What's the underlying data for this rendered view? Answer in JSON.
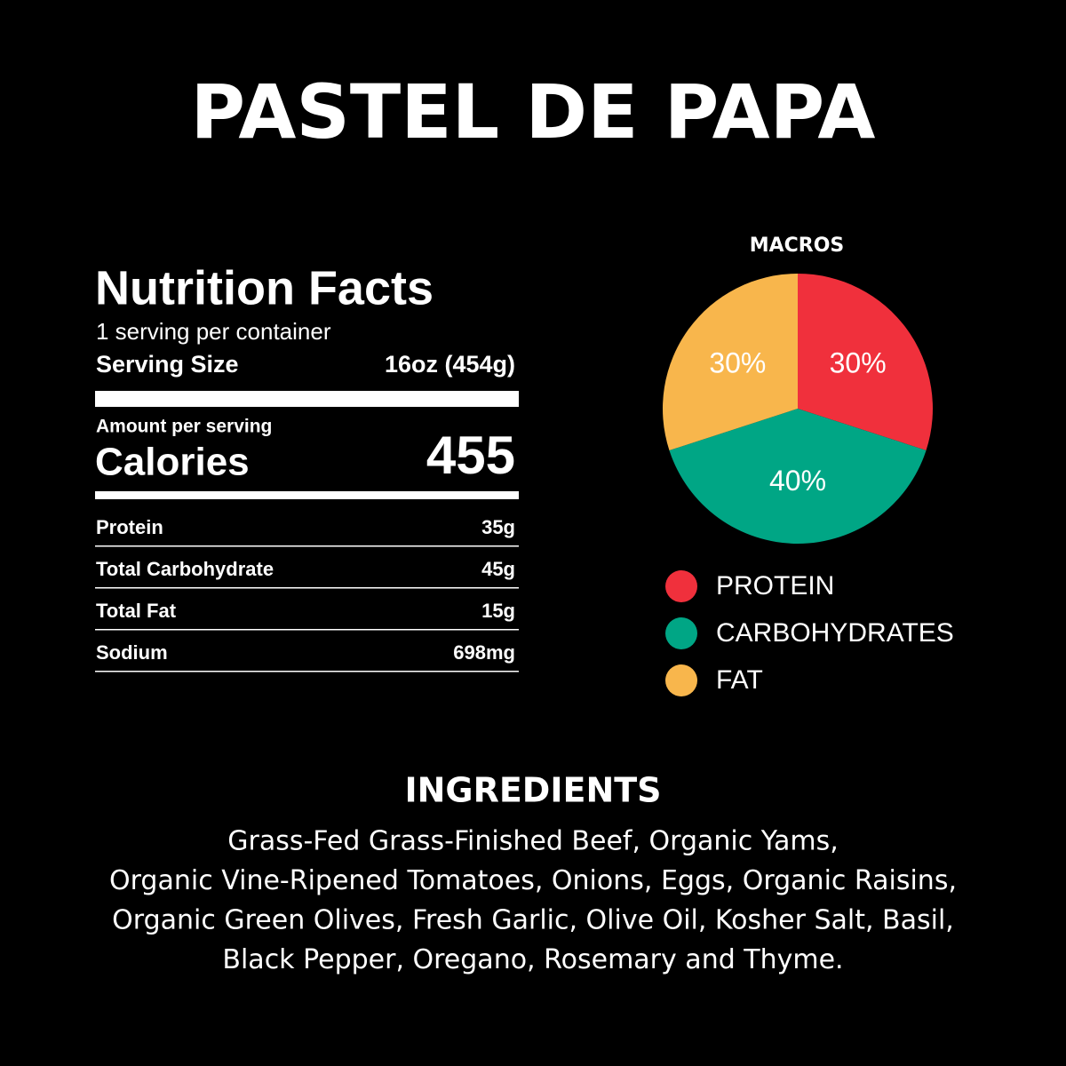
{
  "header": {
    "title": "PASTEL DE PAPA"
  },
  "nutrition": {
    "title": "Nutrition Facts",
    "servings": "1 serving per container",
    "serving_size_label": "Serving Size",
    "serving_size_value": "16oz (454g)",
    "amount_label": "Amount per serving",
    "calories_label": "Calories",
    "calories_value": "455",
    "rows": [
      [
        "Protein",
        "35g"
      ],
      [
        "Total Carbohydrate",
        "45g"
      ],
      [
        "Total Fat",
        "15g"
      ],
      [
        "Sodium",
        "698mg"
      ]
    ]
  },
  "chart_data": {
    "type": "pie",
    "title": "MACROS",
    "categories": [
      "PROTEIN",
      "CARBOHYDRATES",
      "FAT"
    ],
    "values": [
      30,
      40,
      30
    ],
    "value_labels": [
      "30%",
      "40%",
      "30%"
    ],
    "colors": [
      "#f0303c",
      "#00a685",
      "#f8b64c"
    ],
    "legend": "bottom"
  },
  "ingredients": {
    "title": "INGREDIENTS",
    "lines": [
      "Grass-Fed Grass-Finished Beef, Organic Yams,",
      "Organic Vine-Ripened Tomatoes, Onions, Eggs, Organic Raisins,",
      "Organic Green Olives, Fresh Garlic, Olive Oil, Kosher Salt, Basil,",
      "Black Pepper, Oregano, Rosemary and Thyme."
    ]
  }
}
